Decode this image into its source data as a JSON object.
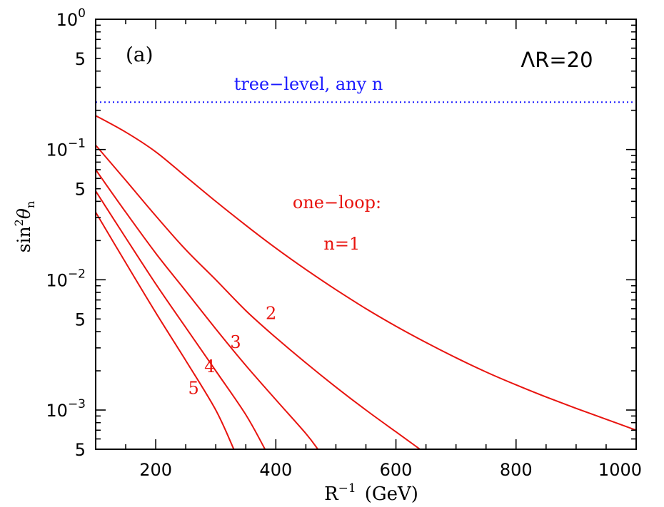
{
  "chart_data": {
    "type": "line",
    "title": "",
    "panel_label": "(a)",
    "parameter_label": "ΛR=20",
    "xlabel": {
      "main": "R",
      "sup": "−1",
      "unit": "(GeV)"
    },
    "ylabel": {
      "main": "sin",
      "sup": "2",
      "theta": "θ",
      "sub": "n"
    },
    "xlim": [
      100,
      1000
    ],
    "ylim": [
      0.0005,
      1
    ],
    "yscale": "log",
    "x_ticks": [
      200,
      400,
      600,
      800,
      1000
    ],
    "x_tick_labels": [
      "200",
      "400",
      "600",
      "800",
      "1000"
    ],
    "y_major_ticks": [
      {
        "value": 1,
        "base": "10",
        "exp": "0"
      },
      {
        "value": 0.1,
        "base": "10",
        "exp": "−1"
      },
      {
        "value": 0.01,
        "base": "10",
        "exp": "−2"
      },
      {
        "value": 0.001,
        "base": "10",
        "exp": "−3"
      }
    ],
    "y_mid_ticks": [
      {
        "value": 0.5,
        "label": "5"
      },
      {
        "value": 0.05,
        "label": "5"
      },
      {
        "value": 0.005,
        "label": "5"
      },
      {
        "value": 0.0005,
        "label": "5"
      }
    ],
    "reference_line": {
      "name": "tree−level, any n",
      "value": 0.231,
      "color": "#1a1aff"
    },
    "annotation_oneloop": "one−loop:",
    "series": [
      {
        "label": "n=1",
        "label_at": [
          510,
          0.017
        ],
        "x": [
          100,
          150,
          200,
          250,
          300,
          350,
          400,
          450,
          500,
          550,
          600,
          650,
          700,
          750,
          800,
          850,
          900,
          950,
          1000
        ],
        "values": [
          0.182,
          0.136,
          0.096,
          0.062,
          0.04,
          0.0262,
          0.0175,
          0.012,
          0.0084,
          0.006,
          0.0044,
          0.0033,
          0.00252,
          0.00196,
          0.00156,
          0.00126,
          0.00103,
          0.00085,
          0.0007
        ]
      },
      {
        "label": "2",
        "label_at": [
          392,
          0.005
        ],
        "x": [
          100,
          150,
          200,
          250,
          300,
          350,
          400,
          450,
          500,
          550,
          600,
          640
        ],
        "values": [
          0.108,
          0.058,
          0.031,
          0.017,
          0.01,
          0.0058,
          0.0036,
          0.0023,
          0.0015,
          0.001,
          0.00068,
          0.0005
        ]
      },
      {
        "label": "3",
        "label_at": [
          333,
          0.003
        ],
        "x": [
          100,
          150,
          200,
          250,
          300,
          350,
          400,
          450,
          470
        ],
        "values": [
          0.07,
          0.033,
          0.016,
          0.0082,
          0.0042,
          0.0022,
          0.0012,
          0.00066,
          0.0005
        ]
      },
      {
        "label": "4",
        "label_at": [
          290,
          0.00195
        ],
        "x": [
          100,
          150,
          200,
          250,
          300,
          350,
          382
        ],
        "values": [
          0.048,
          0.021,
          0.0093,
          0.0043,
          0.002,
          0.00092,
          0.0005
        ]
      },
      {
        "label": "5",
        "label_at": [
          263,
          0.00133
        ],
        "x": [
          100,
          150,
          200,
          250,
          300,
          330
        ],
        "values": [
          0.033,
          0.0135,
          0.0056,
          0.0024,
          0.001,
          0.0005
        ]
      }
    ],
    "curve_color": "#e8140f",
    "grid": false,
    "legend": "none"
  }
}
